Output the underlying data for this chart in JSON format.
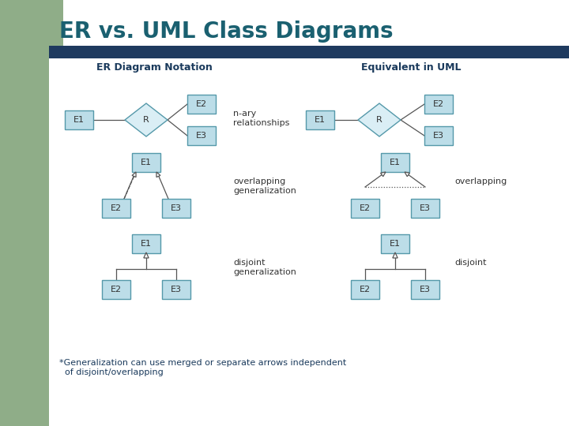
{
  "title": "ER vs. UML Class Diagrams",
  "title_color": "#1a6070",
  "title_bg_color": "#8fad88",
  "bar_color": "#1e3a5f",
  "left_header": "ER Diagram Notation",
  "right_header": "Equivalent in UML",
  "header_color": "#1a3a5c",
  "box_fill": "#bcdde8",
  "box_edge": "#5599aa",
  "diamond_fill": "#daeef5",
  "diamond_edge": "#5599aa",
  "line_color": "#555555",
  "footnote_line1": "*Generalization can use merged or separate arrows independent",
  "footnote_line2": "  of disjoint/overlapping",
  "footnote_color": "#1a3a5c",
  "bg_color": "#ffffff",
  "left_bg": "#8fad88",
  "label_color": "#333333",
  "text_color": "#333333"
}
